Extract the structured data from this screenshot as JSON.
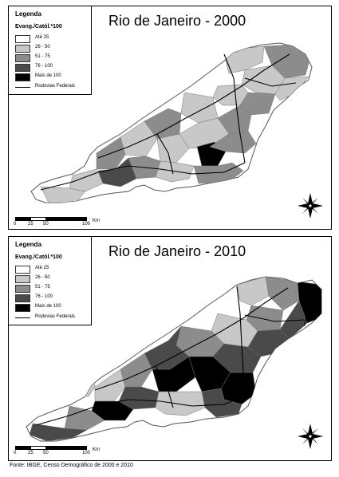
{
  "maps": [
    {
      "title": "Rio de Janeiro - 2000",
      "legend_title": "Legenda",
      "legend_subtitle": "Evang./Catól.*100",
      "classes": [
        {
          "label": "Até 25",
          "color": "#ffffff"
        },
        {
          "label": "26 - 50",
          "color": "#c8c8c8"
        },
        {
          "label": "51 - 75",
          "color": "#8c8c8c"
        },
        {
          "label": "76 - 100",
          "color": "#4a4a4a"
        },
        {
          "label": "Mais de 100",
          "color": "#000000"
        }
      ],
      "roads_label": "Rodovias Federais",
      "scale_ticks": [
        "0",
        "25",
        "50",
        "100"
      ],
      "scale_unit": "Km"
    },
    {
      "title": "Rio de Janeiro - 2010",
      "legend_title": "Legenda",
      "legend_subtitle": "Evang./Catól.*100",
      "classes": [
        {
          "label": "Até 25",
          "color": "#ffffff"
        },
        {
          "label": "26 - 50",
          "color": "#c8c8c8"
        },
        {
          "label": "51 - 75",
          "color": "#8c8c8c"
        },
        {
          "label": "76 - 100",
          "color": "#4a4a4a"
        },
        {
          "label": "Mais de 100",
          "color": "#000000"
        }
      ],
      "roads_label": "Rodovias Federais",
      "scale_ticks": [
        "0",
        "25",
        "50",
        "100"
      ],
      "scale_unit": "Km"
    }
  ],
  "source": "Fonte: IBGE, Censo Demográfico de 2000 e 2010"
}
